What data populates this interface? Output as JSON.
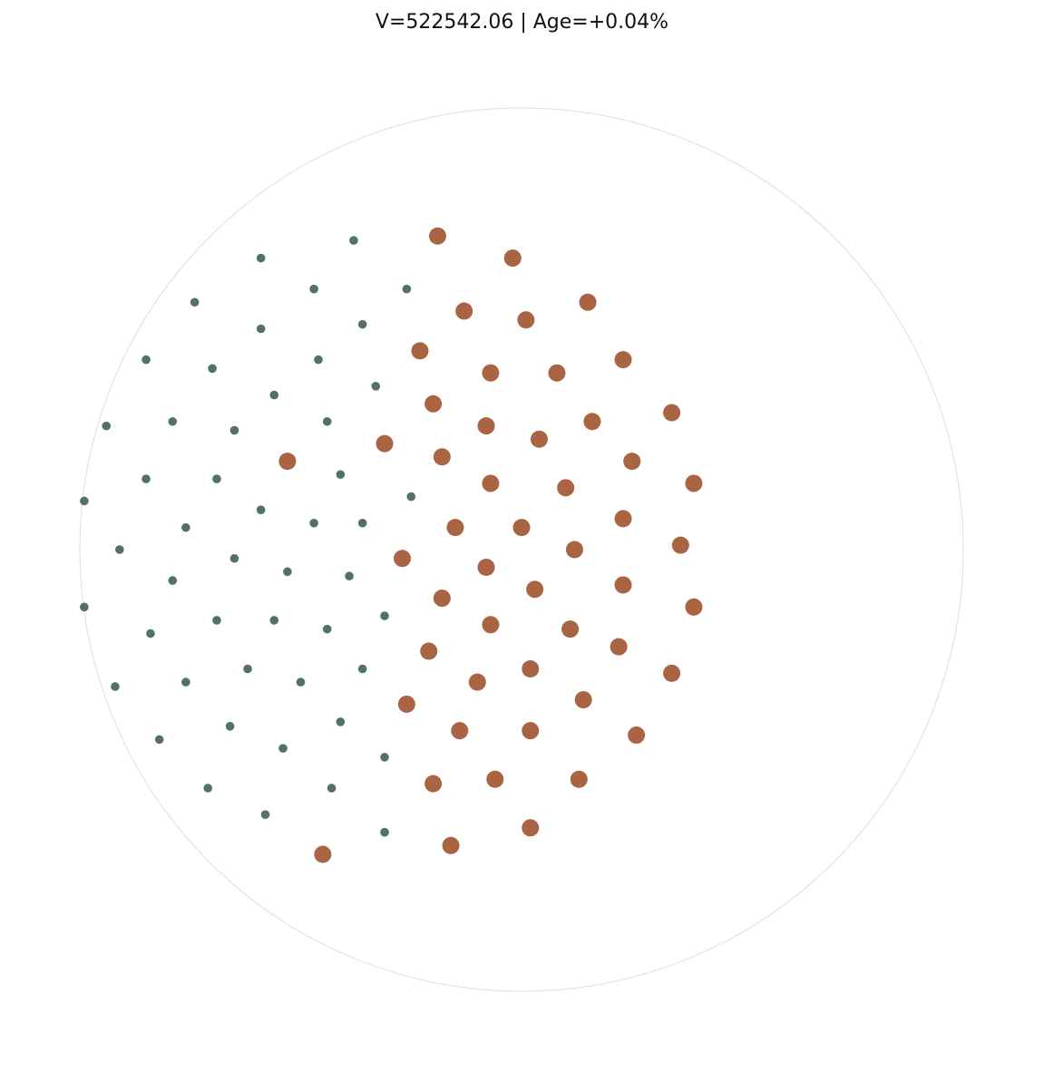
{
  "chart_data": {
    "type": "scatter",
    "title": "V=522542.06 | Age=+0.04%",
    "coordinate_note": "",
    "xlim": [
      -100,
      100
    ],
    "ylim": [
      -100,
      100
    ],
    "grid": false,
    "boundary": "circle",
    "series": [
      {
        "color": "#52706c",
        "marker_size": "small",
        "points": [
          [
            -38,
            70
          ],
          [
            -59,
            66
          ],
          [
            -26,
            59
          ],
          [
            -47,
            59
          ],
          [
            -74,
            56
          ],
          [
            -36,
            51
          ],
          [
            -59,
            50
          ],
          [
            -85,
            43
          ],
          [
            -46,
            43
          ],
          [
            -70,
            41
          ],
          [
            -33,
            37
          ],
          [
            -56,
            35
          ],
          [
            -94,
            28
          ],
          [
            -79,
            29
          ],
          [
            -44,
            29
          ],
          [
            -65,
            27
          ],
          [
            -85,
            16
          ],
          [
            -69,
            16
          ],
          [
            -41,
            17
          ],
          [
            -99,
            11
          ],
          [
            -25,
            12
          ],
          [
            -59,
            9
          ],
          [
            -76,
            5
          ],
          [
            -47,
            6
          ],
          [
            -36,
            6
          ],
          [
            -91,
            0
          ],
          [
            -65,
            -2
          ],
          [
            -53,
            -5
          ],
          [
            -79,
            -7
          ],
          [
            -39,
            -6
          ],
          [
            -99,
            -13
          ],
          [
            -69,
            -16
          ],
          [
            -56,
            -16
          ],
          [
            -84,
            -19
          ],
          [
            -44,
            -18
          ],
          [
            -31,
            -15
          ],
          [
            -62,
            -27
          ],
          [
            -92,
            -31
          ],
          [
            -76,
            -30
          ],
          [
            -50,
            -30
          ],
          [
            -36,
            -27
          ],
          [
            -66,
            -40
          ],
          [
            -41,
            -39
          ],
          [
            -82,
            -43
          ],
          [
            -54,
            -45
          ],
          [
            -31,
            -47
          ],
          [
            -71,
            -54
          ],
          [
            -43,
            -54
          ],
          [
            -58,
            -60
          ],
          [
            -31,
            -64
          ]
        ]
      },
      {
        "color": "#a86443",
        "marker_size": "large",
        "points": [
          [
            -19,
            71
          ],
          [
            -2,
            66
          ],
          [
            15,
            56
          ],
          [
            -13,
            54
          ],
          [
            1,
            52
          ],
          [
            -23,
            45
          ],
          [
            23,
            43
          ],
          [
            -7,
            40
          ],
          [
            8,
            40
          ],
          [
            -20,
            33
          ],
          [
            34,
            31
          ],
          [
            16,
            29
          ],
          [
            -8,
            28
          ],
          [
            4,
            25
          ],
          [
            -31,
            24
          ],
          [
            -53,
            20
          ],
          [
            -18,
            21
          ],
          [
            25,
            20
          ],
          [
            39,
            15
          ],
          [
            -7,
            15
          ],
          [
            10,
            14
          ],
          [
            23,
            7
          ],
          [
            -15,
            5
          ],
          [
            0,
            5
          ],
          [
            36,
            1
          ],
          [
            12,
            0
          ],
          [
            -27,
            -2
          ],
          [
            -8,
            -4
          ],
          [
            23,
            -8
          ],
          [
            3,
            -9
          ],
          [
            -18,
            -11
          ],
          [
            39,
            -13
          ],
          [
            -7,
            -17
          ],
          [
            11,
            -18
          ],
          [
            22,
            -22
          ],
          [
            -21,
            -23
          ],
          [
            34,
            -28
          ],
          [
            2,
            -27
          ],
          [
            -10,
            -30
          ],
          [
            14,
            -34
          ],
          [
            -26,
            -35
          ],
          [
            -14,
            -41
          ],
          [
            2,
            -41
          ],
          [
            26,
            -42
          ],
          [
            -6,
            -52
          ],
          [
            13,
            -52
          ],
          [
            -20,
            -53
          ],
          [
            2,
            -63
          ],
          [
            -16,
            -67
          ],
          [
            -45,
            -69
          ]
        ]
      }
    ],
    "boundary_color": "#dddddd"
  }
}
